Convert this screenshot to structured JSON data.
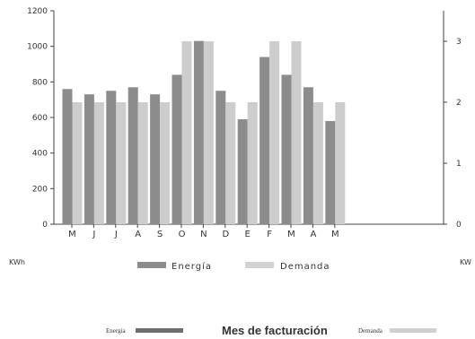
{
  "chart_data": {
    "type": "bar",
    "categories": [
      "M",
      "J",
      "J",
      "A",
      "S",
      "O",
      "N",
      "D",
      "E",
      "F",
      "M",
      "A",
      "M"
    ],
    "series": [
      {
        "name": "Energía",
        "axis": "left",
        "color": "#8c8c8c",
        "values": [
          760,
          730,
          750,
          770,
          730,
          840,
          1030,
          750,
          590,
          940,
          840,
          770,
          580
        ]
      },
      {
        "name": "Demanda",
        "axis": "right",
        "color": "#cdcdcd",
        "values": [
          2,
          2,
          2,
          2,
          2,
          3,
          3,
          2,
          2,
          3,
          3,
          2,
          2
        ]
      }
    ],
    "y_left": {
      "min": 0,
      "max": 1200,
      "ticks": [
        0,
        200,
        400,
        600,
        800,
        1000,
        1200
      ],
      "unit": "KWh"
    },
    "y_right": {
      "min": 0,
      "max": 3.5,
      "ticks": [
        0,
        1,
        2,
        3
      ],
      "unit": "KW"
    },
    "legend": {
      "placement": "bottom",
      "labels": [
        "Energía",
        "Demanda"
      ]
    },
    "grid": false,
    "xlabel": "Mes de facturación"
  },
  "footer": {
    "energy_label": "Energía",
    "title": "Mes de facturación",
    "demand_label": "Demanda"
  }
}
